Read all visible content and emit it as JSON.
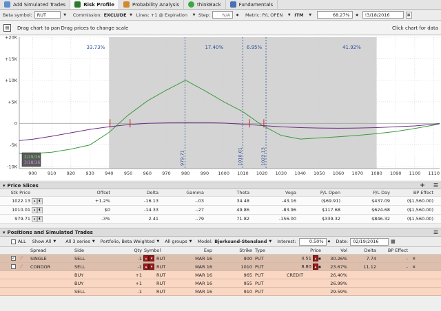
{
  "tabs": [
    {
      "label": "Add Simulated Trades",
      "active": false,
      "icon": "plus-icon"
    },
    {
      "label": "Risk Profile",
      "active": true,
      "icon": "chart-icon"
    },
    {
      "label": "Probability Analysis",
      "active": false,
      "icon": "probability-icon"
    },
    {
      "label": "thinkBack",
      "active": false,
      "icon": "thinkback-icon"
    },
    {
      "label": "Fundamentals",
      "active": false,
      "icon": "fundamentals-icon"
    }
  ],
  "controls": {
    "beta_symbol_label": "Beta symbol:",
    "beta_symbol_value": "RUT",
    "commission_label": "Commission:",
    "commission_value": "EXCLUDE",
    "lines_label": "Lines: +1 @ Expiration",
    "step_label": "Step:",
    "step_value": "N/A",
    "metric_label": "Metric: P/L OPEN",
    "itm_label": "ITM",
    "itm_value": "68.27%",
    "date_value": "!3/18/2016"
  },
  "drag_hint": "Drag chart to pan Drag prices to change scale",
  "click_hint": "Click chart for data",
  "chart_data": {
    "type": "line",
    "x_ticks": [
      "900",
      "910",
      "920",
      "930",
      "940",
      "950",
      "960",
      "970",
      "980",
      "990",
      "1000",
      "1010",
      "1020",
      "1030",
      "1040",
      "1050",
      "1060",
      "1070",
      "1080",
      "1090",
      "1100",
      "1110"
    ],
    "y_ticks": [
      "+20K",
      "+15K",
      "+10K",
      "+5K",
      "0",
      "-5K",
      "-10K"
    ],
    "xlim": [
      893,
      1113
    ],
    "ylim": [
      -10500,
      20000
    ],
    "shaded_range": [
      940,
      1080
    ],
    "prob_labels": [
      {
        "x": 933,
        "text": "33.73%"
      },
      {
        "x": 995,
        "text": "17.40%"
      },
      {
        "x": 1016,
        "text": "6.95%"
      },
      {
        "x": 1067,
        "text": "41.92%"
      }
    ],
    "price_lines": [
      {
        "x": 979.71,
        "label": "979.71"
      },
      {
        "x": 1010.01,
        "label": "1010.01"
      },
      {
        "x": 1022.13,
        "label": "1022.13"
      }
    ],
    "dates_box": [
      "2/19/16",
      "3/18/16"
    ],
    "colors": {
      "expiration": "#3c9a3c",
      "today": "#6a2c86",
      "shade": "#d4d4d4",
      "prob": "#2b4f9a",
      "marker": "#cc2222"
    },
    "series": [
      {
        "x": [
          893,
          900,
          910,
          920,
          930,
          940,
          950,
          960,
          970,
          980,
          990,
          1000,
          1010,
          1020,
          1030,
          1040,
          1050,
          1060,
          1070,
          1080,
          1090,
          1100,
          1110,
          1113
        ],
        "y": [
          -7000,
          -7000,
          -6700,
          -6000,
          -5000,
          -2100,
          1900,
          5200,
          7700,
          10000,
          7600,
          5000,
          2700,
          -400,
          -2800,
          -3650,
          -3400,
          -3100,
          -2800,
          -2400,
          -1900,
          -1200,
          -400,
          -100
        ]
      },
      {
        "x": [
          893,
          900,
          910,
          920,
          930,
          940,
          950,
          960,
          970,
          980,
          990,
          1000,
          1010,
          1020,
          1030,
          1040,
          1050,
          1060,
          1070,
          1080,
          1090,
          1100,
          1110,
          1113
        ],
        "y": [
          -4000,
          -3700,
          -3000,
          -2200,
          -1400,
          -800,
          -300,
          0,
          100,
          200,
          150,
          50,
          -200,
          -500,
          -800,
          -1000,
          -1100,
          -1150,
          -1100,
          -1000,
          -800,
          -600,
          -200,
          -50
        ]
      }
    ]
  },
  "price_slices": {
    "title": "Price Slices",
    "headers": [
      "Stk Price",
      "Offset",
      "Delta",
      "Gamma",
      "Theta",
      "Vega",
      "P/L Open",
      "P/L Day",
      "BP Effect"
    ],
    "rows": [
      {
        "stk": "1022.13",
        "offset": "+1.2%",
        "delta": "-16.13",
        "gamma": "-.03",
        "theta": "34.48",
        "vega": "-43.16",
        "pl_open": "($69.91)",
        "pl_day": "$437.09",
        "bp": "($1,560.00)"
      },
      {
        "stk": "1010.01",
        "offset": "$0",
        "delta": "-14.33",
        "gamma": "-.27",
        "theta": "49.86",
        "vega": "-83.96",
        "pl_open": "$117.68",
        "pl_day": "$624.68",
        "bp": "($1,560.00)"
      },
      {
        "stk": "979.71",
        "offset": "-3%",
        "delta": "2.41",
        "gamma": "-.79",
        "theta": "71.82",
        "vega": "-156.00",
        "pl_open": "$339.32",
        "pl_day": "$846.32",
        "bp": "($1,560.00)"
      }
    ]
  },
  "positions": {
    "title": "Positions and Simulated Trades",
    "toolbar": {
      "all": "ALL",
      "show": "Show All",
      "series": "All 3 series",
      "weighting": "Portfolio, Beta Weighted",
      "groups": "All groups",
      "model_label": "Model:",
      "model_value": "Bjerksund-Stensland",
      "interest_label": "Interest:",
      "interest_value": "0.50%",
      "date_label": "Date:",
      "date_value": "02/19/2016"
    },
    "headers": [
      "Spread",
      "Side",
      "Qty",
      "Symbol",
      "Exp",
      "Strike",
      "Type",
      "Price",
      "Vol",
      "Delta",
      "BP Effect"
    ],
    "rows": [
      {
        "kind": "pos",
        "checked": true,
        "spread": "SINGLE",
        "side": "SELL",
        "qty": "-1",
        "symbol": "RUT",
        "exp": "MAR 16",
        "strike": "900",
        "type": "PUT",
        "price": "4.51",
        "vol": "30.26%",
        "delta": "7.74",
        "bp": "-"
      },
      {
        "kind": "pos",
        "checked": false,
        "spread": "CONDOR",
        "side": "SELL",
        "qty": "-1",
        "symbol": "RUT",
        "exp": "MAR 16",
        "strike": "1010",
        "type": "PUT",
        "price": "8.80",
        "vol": "23.67%",
        "delta": "11.12",
        "bp": "-"
      },
      {
        "kind": "leg",
        "spread": "",
        "side": "BUY",
        "qty": "+1",
        "symbol": "RUT",
        "exp": "MAR 16",
        "strike": "965",
        "type": "PUT",
        "price": "CREDIT",
        "vol": "26.40%",
        "delta": "",
        "bp": ""
      },
      {
        "kind": "leg",
        "spread": "",
        "side": "BUY",
        "qty": "+1",
        "symbol": "RUT",
        "exp": "MAR 16",
        "strike": "955",
        "type": "PUT",
        "price": "",
        "vol": "26.99%",
        "delta": "",
        "bp": ""
      },
      {
        "kind": "leg",
        "spread": "",
        "side": "SELL",
        "qty": "-1",
        "symbol": "RUT",
        "exp": "MAR 16",
        "strike": "910",
        "type": "PUT",
        "price": "",
        "vol": "29.59%",
        "delta": "",
        "bp": ""
      }
    ]
  }
}
